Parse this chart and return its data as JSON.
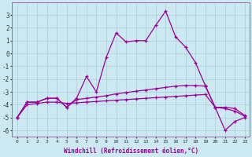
{
  "xlabel": "Windchill (Refroidissement éolien,°C)",
  "x": [
    0,
    1,
    2,
    3,
    4,
    5,
    6,
    7,
    8,
    9,
    10,
    11,
    12,
    13,
    14,
    15,
    16,
    17,
    18,
    19,
    20,
    21,
    22,
    23
  ],
  "line1": [
    -5.0,
    -3.8,
    -3.8,
    -3.5,
    -3.5,
    -4.2,
    -3.5,
    -1.8,
    -3.0,
    -0.3,
    1.6,
    0.9,
    1.0,
    1.0,
    2.2,
    3.3,
    1.3,
    0.5,
    -0.7,
    -2.5,
    -4.2,
    -6.0,
    -5.3,
    -5.0
  ],
  "line2": [
    -5.0,
    -3.8,
    -3.8,
    -3.5,
    -3.5,
    -4.2,
    -3.6,
    -3.5,
    -3.4,
    -3.3,
    -3.15,
    -3.05,
    -2.95,
    -2.85,
    -2.75,
    -2.65,
    -2.55,
    -2.5,
    -2.5,
    -2.55,
    -4.2,
    -4.2,
    -4.3,
    -4.85
  ],
  "line3": [
    -5.0,
    -4.0,
    -3.9,
    -3.8,
    -3.8,
    -3.9,
    -3.85,
    -3.8,
    -3.75,
    -3.7,
    -3.65,
    -3.6,
    -3.55,
    -3.5,
    -3.45,
    -3.4,
    -3.35,
    -3.3,
    -3.25,
    -3.2,
    -4.2,
    -4.3,
    -4.5,
    -4.9
  ],
  "ylim": [
    -6.5,
    4.0
  ],
  "xlim": [
    -0.5,
    23.5
  ],
  "yticks": [
    -6,
    -5,
    -4,
    -3,
    -2,
    -1,
    0,
    1,
    2,
    3
  ],
  "xticks": [
    0,
    1,
    2,
    3,
    4,
    5,
    6,
    7,
    8,
    9,
    10,
    11,
    12,
    13,
    14,
    15,
    16,
    17,
    18,
    19,
    20,
    21,
    22,
    23
  ],
  "line_color": "#990099",
  "bg_color": "#cce8f0",
  "grid_color": "#aaccdd",
  "spine_color": "#9966aa"
}
